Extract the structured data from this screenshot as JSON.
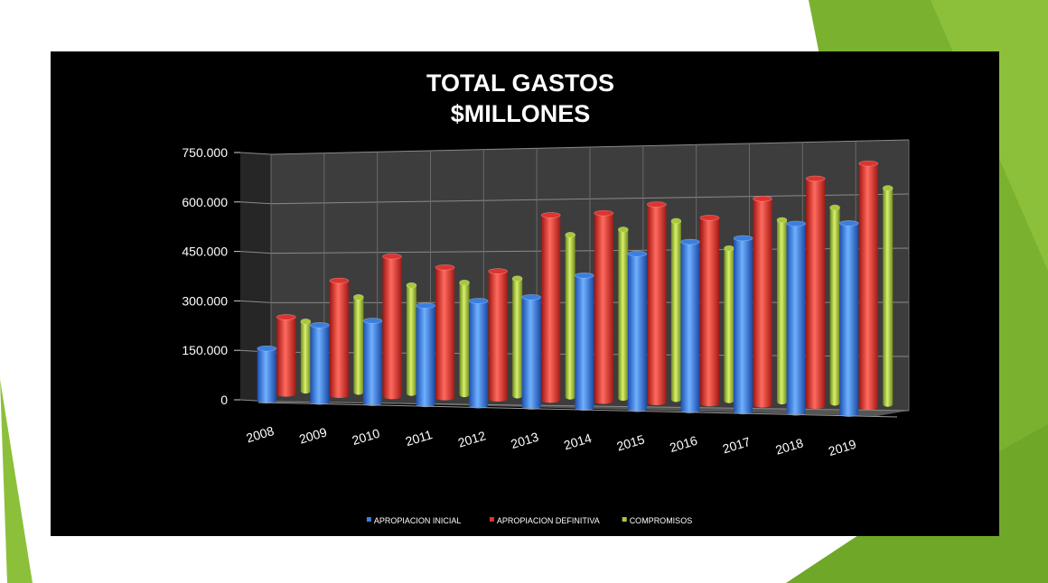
{
  "chart_data": {
    "type": "bar",
    "title": "TOTAL GASTOS",
    "subtitle": "$MILLONES",
    "categories": [
      "2008",
      "2009",
      "2010",
      "2011",
      "2012",
      "2013",
      "2014",
      "2015",
      "2016",
      "2017",
      "2018",
      "2019"
    ],
    "series": [
      {
        "name": "APROPIACION  INICIAL",
        "color": "#3a7fe0",
        "values": [
          160000,
          235000,
          252000,
          302000,
          320000,
          335000,
          405000,
          475000,
          515000,
          530000,
          578000,
          583000
        ]
      },
      {
        "name": "APROPIACION DEFINITIVA",
        "color": "#e0332f",
        "values": [
          235000,
          350000,
          428000,
          398000,
          390000,
          565000,
          575000,
          605000,
          568000,
          630000,
          695000,
          745000
        ]
      },
      {
        "name": "COMPROMISOS",
        "color": "#a8c83a",
        "values": [
          212000,
          290000,
          330000,
          342000,
          358000,
          495000,
          515000,
          545000,
          465000,
          555000,
          597000,
          660000
        ]
      }
    ],
    "yticks": [
      "750.000",
      "600.000",
      "450.000",
      "300.000",
      "150.000",
      "0"
    ],
    "ylim": [
      0,
      750000
    ],
    "xlabel": "",
    "ylabel": "",
    "grid": true,
    "legend": "bottom"
  }
}
